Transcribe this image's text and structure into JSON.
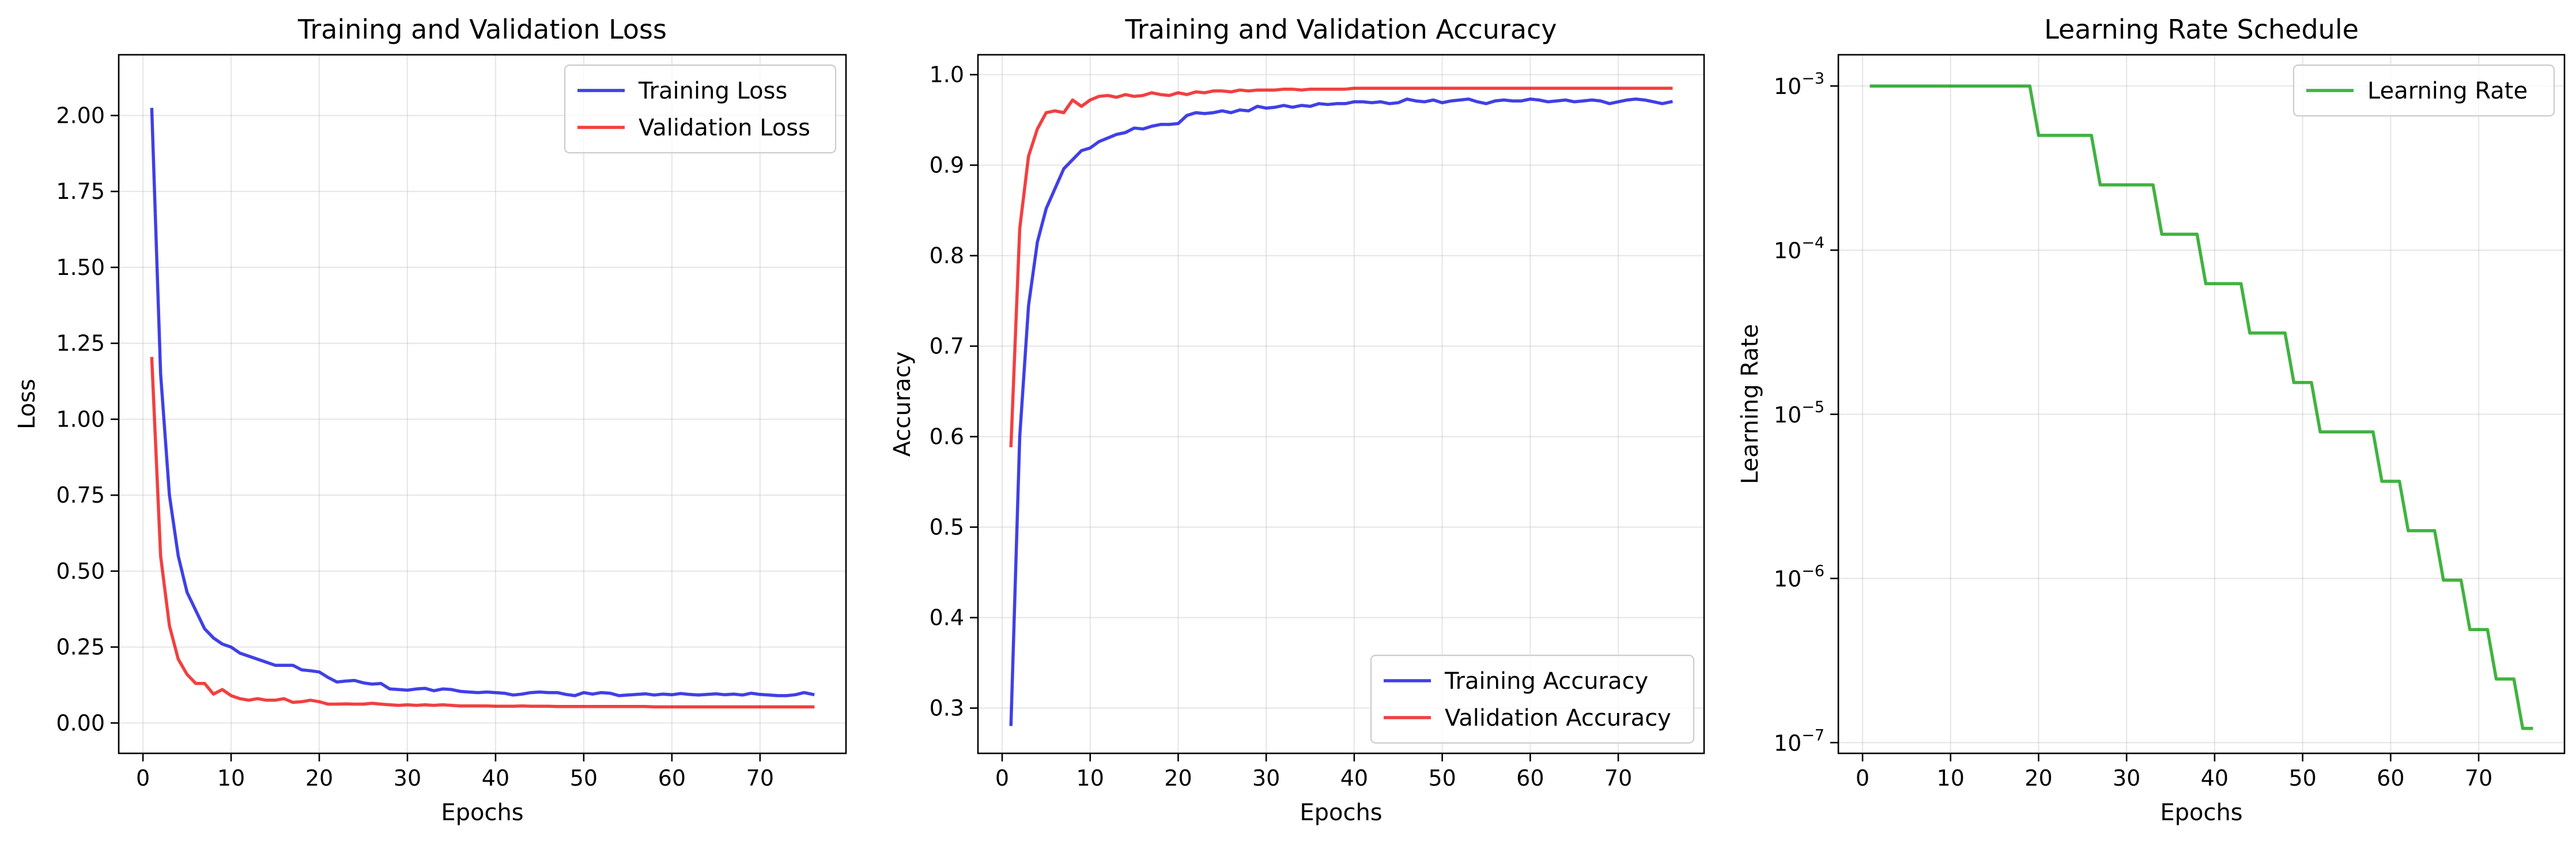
{
  "chart_data": [
    {
      "type": "line",
      "title": "Training and Validation Loss",
      "xlabel": "Epochs",
      "ylabel": "Loss",
      "xlim": [
        -2.75,
        79.75
      ],
      "ylim": [
        -0.1,
        2.2
      ],
      "xticks": [
        0,
        10,
        20,
        30,
        40,
        50,
        60,
        70
      ],
      "yticks": [
        0.0,
        0.25,
        0.5,
        0.75,
        1.0,
        1.25,
        1.5,
        1.75,
        2.0
      ],
      "ytick_labels": [
        "0.00",
        "0.25",
        "0.50",
        "0.75",
        "1.00",
        "1.25",
        "1.50",
        "1.75",
        "2.00"
      ],
      "grid": true,
      "legend": "top-right",
      "x": [
        1,
        2,
        3,
        4,
        5,
        6,
        7,
        8,
        9,
        10,
        11,
        12,
        13,
        14,
        15,
        16,
        17,
        18,
        19,
        20,
        21,
        22,
        23,
        24,
        25,
        26,
        27,
        28,
        29,
        30,
        31,
        32,
        33,
        34,
        35,
        36,
        37,
        38,
        39,
        40,
        41,
        42,
        43,
        44,
        45,
        46,
        47,
        48,
        49,
        50,
        51,
        52,
        53,
        54,
        55,
        56,
        57,
        58,
        59,
        60,
        61,
        62,
        63,
        64,
        65,
        66,
        67,
        68,
        69,
        70,
        71,
        72,
        73,
        74,
        75,
        76
      ],
      "series": [
        {
          "name": "Training Loss",
          "color": "#0000dd",
          "values": [
            2.02,
            1.15,
            0.75,
            0.55,
            0.43,
            0.37,
            0.31,
            0.28,
            0.26,
            0.25,
            0.23,
            0.22,
            0.21,
            0.2,
            0.19,
            0.19,
            0.19,
            0.175,
            0.172,
            0.168,
            0.15,
            0.135,
            0.138,
            0.14,
            0.132,
            0.128,
            0.13,
            0.112,
            0.11,
            0.108,
            0.112,
            0.114,
            0.106,
            0.112,
            0.11,
            0.104,
            0.102,
            0.1,
            0.102,
            0.1,
            0.098,
            0.092,
            0.095,
            0.1,
            0.102,
            0.1,
            0.1,
            0.094,
            0.09,
            0.1,
            0.095,
            0.1,
            0.098,
            0.09,
            0.092,
            0.094,
            0.096,
            0.092,
            0.095,
            0.093,
            0.097,
            0.094,
            0.092,
            0.094,
            0.096,
            0.093,
            0.095,
            0.092,
            0.098,
            0.094,
            0.092,
            0.09,
            0.09,
            0.093,
            0.1,
            0.094
          ]
        },
        {
          "name": "Validation Loss",
          "color": "#ee0000",
          "values": [
            1.2,
            0.55,
            0.32,
            0.21,
            0.16,
            0.13,
            0.13,
            0.095,
            0.11,
            0.09,
            0.08,
            0.075,
            0.08,
            0.075,
            0.075,
            0.08,
            0.068,
            0.07,
            0.075,
            0.07,
            0.062,
            0.062,
            0.063,
            0.062,
            0.062,
            0.065,
            0.062,
            0.06,
            0.058,
            0.06,
            0.058,
            0.06,
            0.058,
            0.06,
            0.058,
            0.056,
            0.056,
            0.056,
            0.056,
            0.055,
            0.055,
            0.055,
            0.056,
            0.055,
            0.055,
            0.055,
            0.054,
            0.054,
            0.054,
            0.054,
            0.054,
            0.054,
            0.054,
            0.054,
            0.054,
            0.054,
            0.054,
            0.053,
            0.053,
            0.053,
            0.053,
            0.053,
            0.053,
            0.053,
            0.053,
            0.053,
            0.053,
            0.053,
            0.053,
            0.053,
            0.053,
            0.053,
            0.053,
            0.053,
            0.053,
            0.053
          ]
        }
      ]
    },
    {
      "type": "line",
      "title": "Training and Validation Accuracy",
      "xlabel": "Epochs",
      "ylabel": "Accuracy",
      "xlim": [
        -2.75,
        79.75
      ],
      "ylim": [
        0.25,
        1.022
      ],
      "xticks": [
        0,
        10,
        20,
        30,
        40,
        50,
        60,
        70
      ],
      "yticks": [
        0.3,
        0.4,
        0.5,
        0.6,
        0.7,
        0.8,
        0.9,
        1.0
      ],
      "ytick_labels": [
        "0.3",
        "0.4",
        "0.5",
        "0.6",
        "0.7",
        "0.8",
        "0.9",
        "1.0"
      ],
      "grid": true,
      "legend": "bottom-right",
      "x": [
        1,
        2,
        3,
        4,
        5,
        6,
        7,
        8,
        9,
        10,
        11,
        12,
        13,
        14,
        15,
        16,
        17,
        18,
        19,
        20,
        21,
        22,
        23,
        24,
        25,
        26,
        27,
        28,
        29,
        30,
        31,
        32,
        33,
        34,
        35,
        36,
        37,
        38,
        39,
        40,
        41,
        42,
        43,
        44,
        45,
        46,
        47,
        48,
        49,
        50,
        51,
        52,
        53,
        54,
        55,
        56,
        57,
        58,
        59,
        60,
        61,
        62,
        63,
        64,
        65,
        66,
        67,
        68,
        69,
        70,
        71,
        72,
        73,
        74,
        75,
        76
      ],
      "series": [
        {
          "name": "Training Accuracy",
          "color": "#0000dd",
          "values": [
            0.282,
            0.6,
            0.745,
            0.815,
            0.852,
            0.874,
            0.896,
            0.906,
            0.916,
            0.919,
            0.926,
            0.93,
            0.934,
            0.936,
            0.941,
            0.94,
            0.943,
            0.945,
            0.945,
            0.946,
            0.955,
            0.958,
            0.957,
            0.958,
            0.96,
            0.958,
            0.961,
            0.96,
            0.965,
            0.963,
            0.964,
            0.966,
            0.964,
            0.966,
            0.965,
            0.968,
            0.967,
            0.968,
            0.968,
            0.97,
            0.97,
            0.969,
            0.97,
            0.968,
            0.969,
            0.973,
            0.971,
            0.97,
            0.972,
            0.969,
            0.971,
            0.972,
            0.973,
            0.97,
            0.968,
            0.971,
            0.972,
            0.971,
            0.971,
            0.973,
            0.972,
            0.97,
            0.971,
            0.972,
            0.97,
            0.971,
            0.972,
            0.971,
            0.968,
            0.97,
            0.972,
            0.973,
            0.972,
            0.97,
            0.968,
            0.97
          ]
        },
        {
          "name": "Validation Accuracy",
          "color": "#ee0000",
          "values": [
            0.59,
            0.83,
            0.91,
            0.94,
            0.958,
            0.96,
            0.958,
            0.972,
            0.965,
            0.972,
            0.976,
            0.977,
            0.975,
            0.978,
            0.976,
            0.977,
            0.98,
            0.978,
            0.977,
            0.98,
            0.978,
            0.981,
            0.98,
            0.982,
            0.982,
            0.981,
            0.983,
            0.982,
            0.983,
            0.983,
            0.983,
            0.984,
            0.984,
            0.983,
            0.984,
            0.984,
            0.984,
            0.984,
            0.984,
            0.985,
            0.985,
            0.985,
            0.985,
            0.985,
            0.985,
            0.985,
            0.985,
            0.985,
            0.985,
            0.985,
            0.985,
            0.985,
            0.985,
            0.985,
            0.985,
            0.985,
            0.985,
            0.985,
            0.985,
            0.985,
            0.985,
            0.985,
            0.985,
            0.985,
            0.985,
            0.985,
            0.985,
            0.985,
            0.985,
            0.985,
            0.985,
            0.985,
            0.985,
            0.985,
            0.985,
            0.985
          ]
        }
      ]
    },
    {
      "type": "line",
      "title": "Learning Rate Schedule",
      "xlabel": "Epochs",
      "ylabel": "Learning Rate",
      "yscale": "log",
      "xlim": [
        -2.75,
        79.75
      ],
      "ylim": [
        8.6e-08,
        0.00155
      ],
      "xticks": [
        0,
        10,
        20,
        30,
        40,
        50,
        60,
        70
      ],
      "yticks": [
        1e-07,
        1e-06,
        1e-05,
        0.0001,
        0.001
      ],
      "ytick_base": "10",
      "ytick_exponents": [
        "−7",
        "−6",
        "−5",
        "−4",
        "−3"
      ],
      "grid": true,
      "legend": "top-right",
      "x": [
        1,
        2,
        3,
        4,
        5,
        6,
        7,
        8,
        9,
        10,
        11,
        12,
        13,
        14,
        15,
        16,
        17,
        18,
        19,
        20,
        21,
        22,
        23,
        24,
        25,
        26,
        27,
        28,
        29,
        30,
        31,
        32,
        33,
        34,
        35,
        36,
        37,
        38,
        39,
        40,
        41,
        42,
        43,
        44,
        45,
        46,
        47,
        48,
        49,
        50,
        51,
        52,
        53,
        54,
        55,
        56,
        57,
        58,
        59,
        60,
        61,
        62,
        63,
        64,
        65,
        66,
        67,
        68,
        69,
        70,
        71,
        72,
        73,
        74,
        75,
        76
      ],
      "series": [
        {
          "name": "Learning Rate",
          "color": "#009900",
          "values": [
            0.001,
            0.001,
            0.001,
            0.001,
            0.001,
            0.001,
            0.001,
            0.001,
            0.001,
            0.001,
            0.001,
            0.001,
            0.001,
            0.001,
            0.001,
            0.001,
            0.001,
            0.001,
            0.001,
            0.0005,
            0.0005,
            0.0005,
            0.0005,
            0.0005,
            0.0005,
            0.0005,
            0.00025,
            0.00025,
            0.00025,
            0.00025,
            0.00025,
            0.00025,
            0.00025,
            0.000125,
            0.000125,
            0.000125,
            0.000125,
            0.000125,
            6.25e-05,
            6.25e-05,
            6.25e-05,
            6.25e-05,
            6.25e-05,
            3.125e-05,
            3.125e-05,
            3.125e-05,
            3.125e-05,
            3.125e-05,
            1.5625e-05,
            1.5625e-05,
            1.5625e-05,
            7.8125e-06,
            7.8125e-06,
            7.8125e-06,
            7.8125e-06,
            7.8125e-06,
            7.8125e-06,
            7.8125e-06,
            3.90625e-06,
            3.90625e-06,
            3.90625e-06,
            1.953125e-06,
            1.953125e-06,
            1.953125e-06,
            1.953125e-06,
            9.765625e-07,
            9.765625e-07,
            9.765625e-07,
            4.8828125e-07,
            4.8828125e-07,
            4.8828125e-07,
            2.44140625e-07,
            2.44140625e-07,
            2.44140625e-07,
            1.220703125e-07,
            1.220703125e-07
          ]
        }
      ]
    }
  ]
}
